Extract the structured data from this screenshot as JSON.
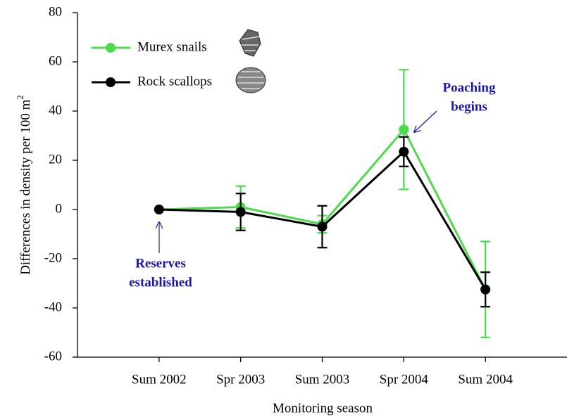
{
  "chart_data": {
    "type": "line",
    "x_label": "Monitoring season",
    "y_label": "Differences in density per 100 m",
    "y_label_superscript": "2",
    "categories": [
      "Sum 2002",
      "Spr 2003",
      "Sum 2003",
      "Spr 2004",
      "Sum 2004"
    ],
    "series": [
      {
        "name": "Murex snails",
        "color": "#4ddb4d",
        "values": [
          0,
          1,
          -6,
          32.5,
          -32.5
        ],
        "errors": [
          null,
          8.5,
          3.5,
          24.3,
          19.5
        ]
      },
      {
        "name": "Rock scallops",
        "color": "#000000",
        "values": [
          0,
          -1,
          -7,
          23.5,
          -32.5
        ],
        "errors": [
          null,
          7.5,
          8.5,
          6,
          7
        ]
      }
    ],
    "ylim": [
      -60,
      80
    ],
    "yticks": [
      -60,
      -40,
      -20,
      0,
      20,
      40,
      60,
      80
    ],
    "legend": "upper left",
    "grid": false,
    "annotations": [
      {
        "lines": [
          "Reserves",
          "established"
        ],
        "color": "#1a1aa6"
      },
      {
        "lines": [
          "Poaching",
          "begins"
        ],
        "color": "#1a1aa6"
      }
    ]
  }
}
